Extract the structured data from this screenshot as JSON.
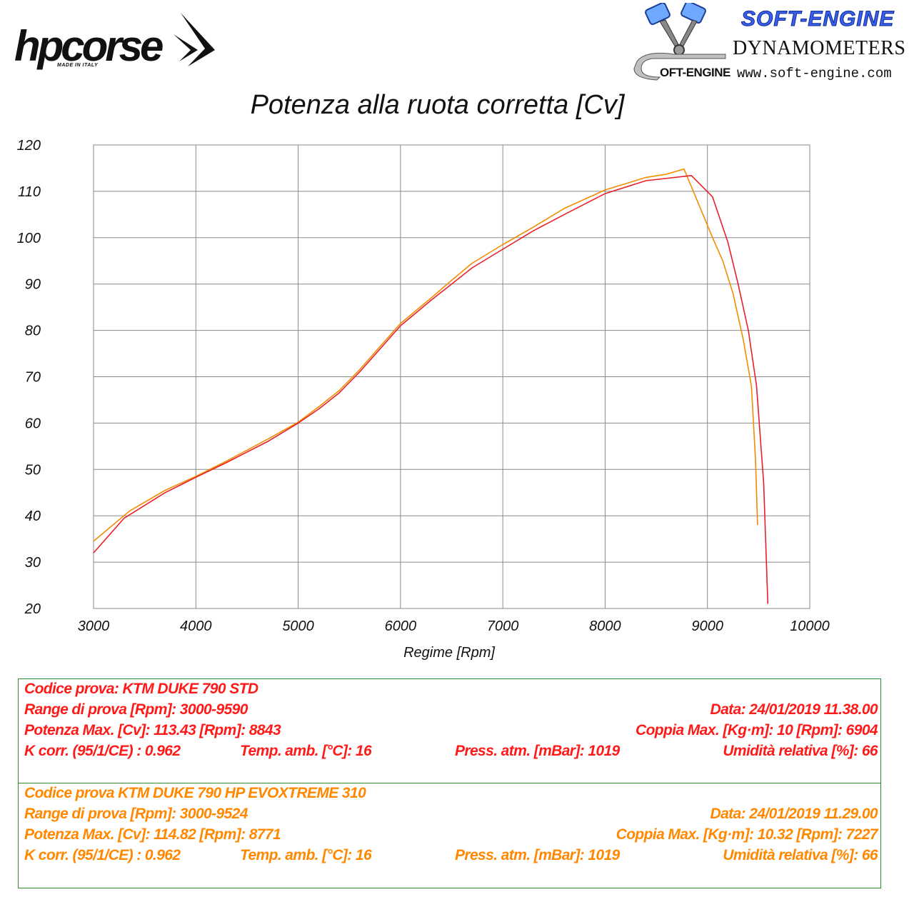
{
  "logos": {
    "hpcorse": {
      "wordmark": "hpcorse",
      "tagline": "MADE IN ITALY"
    },
    "softengine": {
      "brand": "SOFT-ENGINE",
      "subtitle": "DYNAMOMETERS",
      "url": "www.soft-engine.com",
      "small_mark": "OFT-ENGINE",
      "brand_color": "#3a5fe8"
    }
  },
  "chart_data": {
    "type": "line",
    "title": "Potenza alla ruota corretta [Cv]",
    "xlabel": "Regime [Rpm]",
    "ylabel": "",
    "xlim": [
      3000,
      10000
    ],
    "ylim": [
      20,
      120
    ],
    "x_ticks": [
      "3000",
      "4000",
      "5000",
      "6000",
      "7000",
      "8000",
      "9000",
      "10000"
    ],
    "y_ticks": [
      "20",
      "30",
      "40",
      "50",
      "60",
      "70",
      "80",
      "90",
      "100",
      "110",
      "120"
    ],
    "grid": true,
    "series": [
      {
        "name": "KTM DUKE 790 STD",
        "color": "#e8202a",
        "points": [
          [
            3000,
            32
          ],
          [
            3300,
            39.5
          ],
          [
            3700,
            45
          ],
          [
            4000,
            48.3
          ],
          [
            4300,
            51.5
          ],
          [
            4700,
            56
          ],
          [
            5000,
            60
          ],
          [
            5200,
            63
          ],
          [
            5400,
            66.5
          ],
          [
            5600,
            71
          ],
          [
            5800,
            76
          ],
          [
            6000,
            81
          ],
          [
            6300,
            86.5
          ],
          [
            6500,
            90
          ],
          [
            6700,
            93.5
          ],
          [
            7000,
            97.5
          ],
          [
            7300,
            101.5
          ],
          [
            7600,
            105
          ],
          [
            8000,
            109.5
          ],
          [
            8400,
            112.3
          ],
          [
            8843,
            113.4
          ],
          [
            9050,
            108.8
          ],
          [
            9200,
            99
          ],
          [
            9300,
            90
          ],
          [
            9400,
            80
          ],
          [
            9480,
            68
          ],
          [
            9550,
            47
          ],
          [
            9590,
            21
          ]
        ]
      },
      {
        "name": "KTM DUKE 790 HP EVOXTREME 310",
        "color": "#f28c00",
        "points": [
          [
            3000,
            34.5
          ],
          [
            3350,
            41
          ],
          [
            3700,
            45.5
          ],
          [
            4000,
            48.5
          ],
          [
            4300,
            51.8
          ],
          [
            4700,
            56.5
          ],
          [
            5000,
            60.2
          ],
          [
            5200,
            63.5
          ],
          [
            5400,
            67
          ],
          [
            5600,
            71.5
          ],
          [
            5800,
            76.5
          ],
          [
            6000,
            81.5
          ],
          [
            6300,
            87
          ],
          [
            6500,
            90.8
          ],
          [
            6700,
            94.5
          ],
          [
            7000,
            98.5
          ],
          [
            7300,
            102.3
          ],
          [
            7600,
            106.3
          ],
          [
            8000,
            110.3
          ],
          [
            8400,
            113
          ],
          [
            8600,
            113.7
          ],
          [
            8771,
            114.8
          ],
          [
            8900,
            108
          ],
          [
            9050,
            100
          ],
          [
            9150,
            95
          ],
          [
            9250,
            88
          ],
          [
            9350,
            78
          ],
          [
            9430,
            68
          ],
          [
            9470,
            52
          ],
          [
            9490,
            38
          ]
        ]
      }
    ]
  },
  "tests": [
    {
      "color": "#ff1a1a",
      "codice": "Codice prova: KTM DUKE 790  STD",
      "range": "Range di prova [Rpm]: 3000-9590",
      "data": "Data: 24/01/2019   11.38.00",
      "potenza": "Potenza Max. [Cv]: 113.43   [Rpm]: 8843",
      "coppia": "Coppia Max. [Kg·m]: 10   [Rpm]: 6904",
      "kcorr": "K corr. (95/1/CE) : 0.962",
      "temp": "Temp. amb. [°C]: 16",
      "press": "Press. atm. [mBar]: 1019",
      "umidita": "Umidità relativa [%]: 66"
    },
    {
      "color": "#ff8800",
      "codice": "Codice prova  KTM DUKE 790 HP   EVOXTREME 310",
      "range": "Range di prova [Rpm]: 3000-9524",
      "data": "Data: 24/01/2019   11.29.00",
      "potenza": "Potenza Max. [Cv]:   114.82    [Rpm]: 8771",
      "coppia": "Coppia Max. [Kg·m]: 10.32   [Rpm]: 7227",
      "kcorr": "K corr. (95/1/CE) : 0.962",
      "temp": "Temp. amb. [°C]: 16",
      "press": "Press. atm. [mBar]: 1019",
      "umidita": "Umidità relativa [%]: 66"
    }
  ]
}
